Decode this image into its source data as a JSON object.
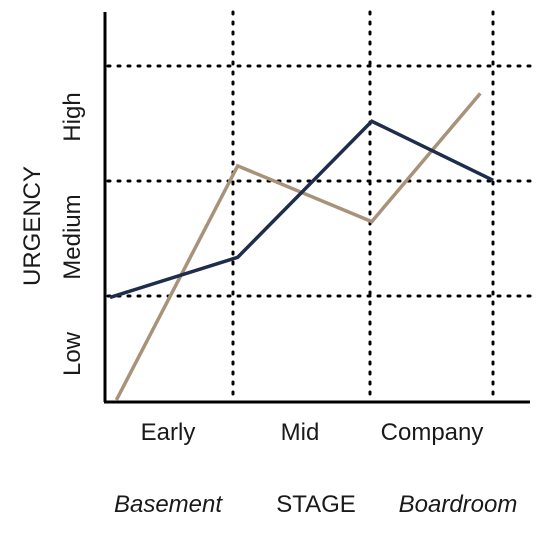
{
  "chart_data": {
    "type": "line",
    "title": "",
    "xlabel": "STAGE",
    "ylabel": "URGENCY",
    "x_categories": [
      "Early",
      "Mid",
      "Company"
    ],
    "y_levels": [
      "Low",
      "Medium",
      "High"
    ],
    "x_range": [
      0,
      3.1
    ],
    "y_range": [
      0,
      3.1
    ],
    "grid": true,
    "grid_style": "dotted",
    "legend": [
      {
        "label": "Basement",
        "color": "#7a6248",
        "position": "bottom-left"
      },
      {
        "label": "Boardroom",
        "color": "#a8927a",
        "position": "bottom-right"
      }
    ],
    "series": [
      {
        "name": "Basement",
        "color": "#1f2d4d",
        "x": [
          0.0,
          1.0,
          2.05,
          3.0
        ],
        "y": [
          0.92,
          1.28,
          2.5,
          1.97
        ]
      },
      {
        "name": "Boardroom",
        "color": "#a8927a",
        "x": [
          0.05,
          1.0,
          2.05,
          2.9
        ],
        "y": [
          0.0,
          2.1,
          1.6,
          2.75
        ]
      }
    ]
  },
  "colors": {
    "axis": "#000000",
    "grid": "#000000",
    "label_text": "#1a1a1a"
  }
}
